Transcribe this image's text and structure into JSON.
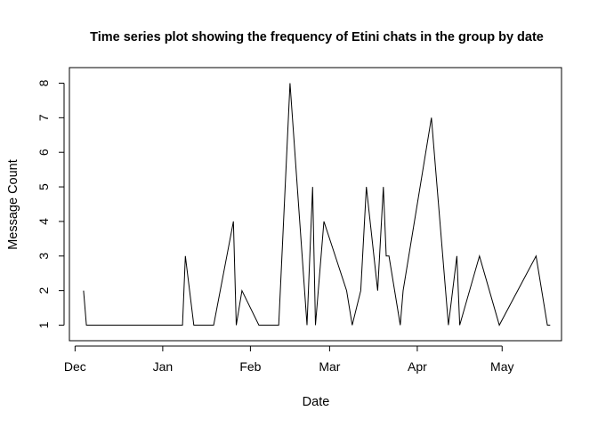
{
  "chart_data": {
    "type": "line",
    "title": "Time series plot showing the frequency of Etini chats in the group by date",
    "xlabel": "Date",
    "ylabel": "Message Count",
    "x_ticks": [
      {
        "label": "Dec",
        "date": "2021-12-01"
      },
      {
        "label": "Jan",
        "date": "2022-01-01"
      },
      {
        "label": "Feb",
        "date": "2022-02-01"
      },
      {
        "label": "Mar",
        "date": "2022-03-01"
      },
      {
        "label": "Apr",
        "date": "2022-04-01"
      },
      {
        "label": "May",
        "date": "2022-05-01"
      }
    ],
    "xlim": [
      "2021-11-29",
      "2022-05-22"
    ],
    "ylim": [
      0.55,
      8.45
    ],
    "y_ticks": [
      1,
      2,
      3,
      4,
      5,
      6,
      7,
      8
    ],
    "grid": false,
    "color": "#000000",
    "series": [
      {
        "x": [
          "2021-12-04",
          "2021-12-05",
          "2022-01-08",
          "2022-01-09",
          "2022-01-12",
          "2022-01-19",
          "2022-01-26",
          "2022-01-27",
          "2022-01-29",
          "2022-02-04",
          "2022-02-11",
          "2022-02-15",
          "2022-02-21",
          "2022-02-23",
          "2022-02-24",
          "2022-02-27",
          "2022-03-07",
          "2022-03-09",
          "2022-03-12",
          "2022-03-14",
          "2022-03-18",
          "2022-03-20",
          "2022-03-21",
          "2022-03-22",
          "2022-03-26",
          "2022-03-27",
          "2022-04-06",
          "2022-04-12",
          "2022-04-15",
          "2022-04-16",
          "2022-04-23",
          "2022-04-30",
          "2022-05-13",
          "2022-05-17",
          "2022-05-18"
        ],
        "y": [
          2,
          1,
          1,
          3,
          1,
          1,
          4,
          1,
          2,
          1,
          1,
          8,
          1,
          5,
          1,
          4,
          2,
          1,
          2,
          5,
          2,
          5,
          3,
          3,
          1,
          2,
          7,
          1,
          3,
          1,
          3,
          1,
          3,
          1,
          1
        ]
      }
    ]
  }
}
